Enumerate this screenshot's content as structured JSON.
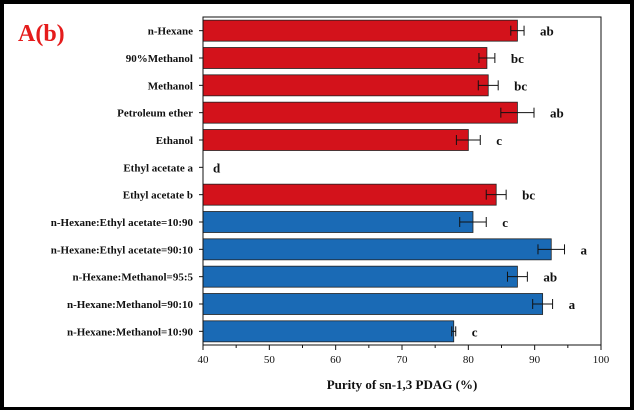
{
  "panel_label": "A(b)",
  "chart_data": {
    "type": "bar",
    "orientation": "horizontal",
    "xlabel": "Purity of sn-1,3 PDAG (%)",
    "xlim": [
      40,
      100
    ],
    "xticks": [
      "40",
      "50",
      "60",
      "70",
      "80",
      "90",
      "100"
    ],
    "grid": false,
    "bar_colors": [
      "#d3121b",
      "#1a6ab5"
    ],
    "categories": [
      "n-Hexane",
      "90%Methanol",
      "Methanol",
      "Petroleum ether",
      "Ethanol",
      "Ethyl acetate a",
      "Ethyl acetate b",
      "n-Hexane:Ethyl acetate=10:90",
      "n-Hexane:Ethyl acetate=90:10",
      "n-Hexane:Methanol=95:5",
      "n-Hexane:Methanol=90:10",
      "n-Hexane:Methanol=10:90"
    ],
    "values": [
      87.4,
      82.8,
      83.0,
      87.4,
      80.0,
      null,
      84.2,
      80.7,
      92.5,
      87.4,
      91.2,
      77.8
    ],
    "errors": [
      1.0,
      1.2,
      1.5,
      2.5,
      1.8,
      null,
      1.5,
      2.0,
      2.0,
      1.5,
      1.5,
      0.3
    ],
    "color_index": [
      0,
      0,
      0,
      0,
      0,
      0,
      0,
      1,
      1,
      1,
      1,
      1
    ],
    "significance": [
      "ab",
      "bc",
      "bc",
      "ab",
      "c",
      "d",
      "bc",
      "c",
      "a",
      "ab",
      "a",
      "c"
    ]
  }
}
